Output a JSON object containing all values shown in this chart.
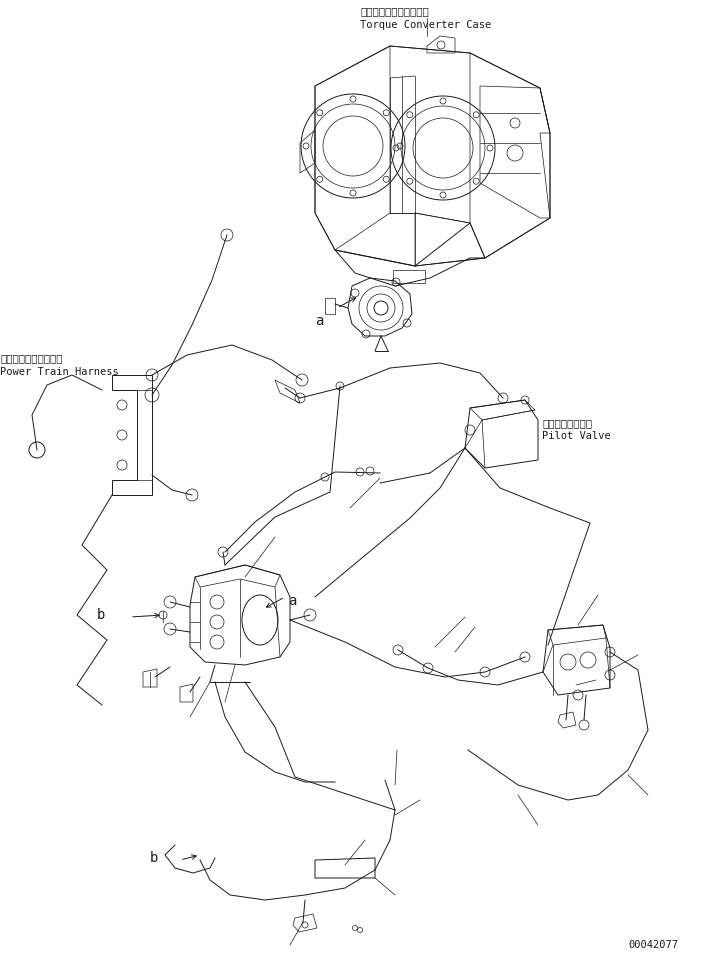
{
  "background_color": "#ffffff",
  "part_number": "00042077",
  "labels": {
    "torque_converter_jp": "トルクコンバータケース",
    "torque_converter_en": "Torque Converter Case",
    "power_train_jp": "パワートレンハーネス",
    "power_train_en": "Power Train Harness",
    "pilot_valve_jp": "パイロットバルブ",
    "pilot_valve_en": "Pilot Valve",
    "label_a": "a",
    "label_b": "b"
  },
  "figsize": [
    7.11,
    9.59
  ],
  "dpi": 100
}
